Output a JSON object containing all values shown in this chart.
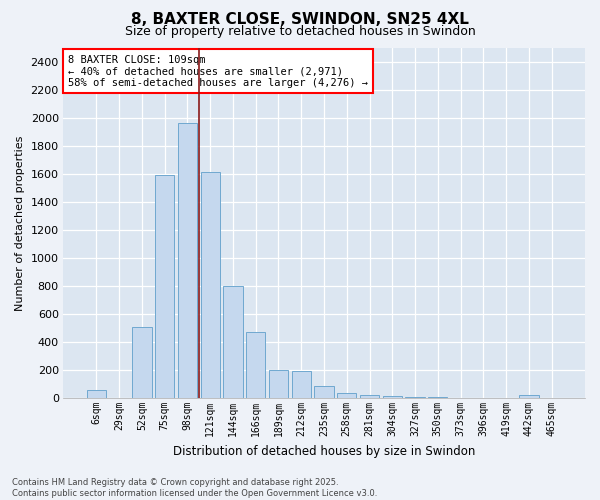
{
  "title": "8, BAXTER CLOSE, SWINDON, SN25 4XL",
  "subtitle": "Size of property relative to detached houses in Swindon",
  "xlabel": "Distribution of detached houses by size in Swindon",
  "ylabel": "Number of detached properties",
  "footnote": "Contains HM Land Registry data © Crown copyright and database right 2025.\nContains public sector information licensed under the Open Government Licence v3.0.",
  "bins": [
    "6sqm",
    "29sqm",
    "52sqm",
    "75sqm",
    "98sqm",
    "121sqm",
    "144sqm",
    "166sqm",
    "189sqm",
    "212sqm",
    "235sqm",
    "258sqm",
    "281sqm",
    "304sqm",
    "327sqm",
    "350sqm",
    "373sqm",
    "396sqm",
    "419sqm",
    "442sqm",
    "465sqm"
  ],
  "values": [
    55,
    0,
    510,
    1590,
    1960,
    1610,
    800,
    475,
    200,
    195,
    85,
    40,
    25,
    15,
    10,
    5,
    2,
    0,
    0,
    20,
    0
  ],
  "bar_color": "#c5d8ee",
  "bar_edge_color": "#6fa8d0",
  "property_line_color": "#8b1a1a",
  "property_line_bin_index": 4,
  "annotation_text": "8 BAXTER CLOSE: 109sqm\n← 40% of detached houses are smaller (2,971)\n58% of semi-detached houses are larger (4,276) →",
  "ylim": [
    0,
    2500
  ],
  "yticks": [
    0,
    200,
    400,
    600,
    800,
    1000,
    1200,
    1400,
    1600,
    1800,
    2000,
    2200,
    2400
  ],
  "fig_bg_color": "#eef2f8",
  "plot_bg_color": "#dce6f1",
  "title_fontsize": 11,
  "subtitle_fontsize": 9
}
